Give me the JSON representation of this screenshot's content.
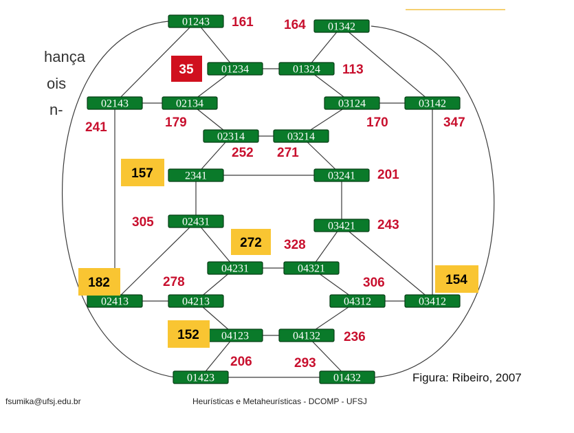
{
  "background_fragments": [
    "hança",
    "ois",
    "n-"
  ],
  "nodes": [
    {
      "id": "01243"
    },
    {
      "id": "01342"
    },
    {
      "id": "01234"
    },
    {
      "id": "01324"
    },
    {
      "id": "02143"
    },
    {
      "id": "02134"
    },
    {
      "id": "03124"
    },
    {
      "id": "03142"
    },
    {
      "id": "02314"
    },
    {
      "id": "03214"
    },
    {
      "id": "2341"
    },
    {
      "id": "03241"
    },
    {
      "id": "02431"
    },
    {
      "id": "03421"
    },
    {
      "id": "04231"
    },
    {
      "id": "04321"
    },
    {
      "id": "02413"
    },
    {
      "id": "04213"
    },
    {
      "id": "04312"
    },
    {
      "id": "03412"
    },
    {
      "id": "04123"
    },
    {
      "id": "04132"
    },
    {
      "id": "01423"
    },
    {
      "id": "01432"
    }
  ],
  "edges": [
    [
      "01243",
      "01234"
    ],
    [
      "01243",
      "02143"
    ],
    [
      "01342",
      "01324"
    ],
    [
      "01342",
      "03142"
    ],
    [
      "01234",
      "01324"
    ],
    [
      "01234",
      "02134"
    ],
    [
      "01324",
      "03124"
    ],
    [
      "02143",
      "02134"
    ],
    [
      "03124",
      "03142"
    ],
    [
      "02134",
      "02314"
    ],
    [
      "03124",
      "03214"
    ],
    [
      "02314",
      "03214"
    ],
    [
      "02314",
      "2341"
    ],
    [
      "03214",
      "03241"
    ],
    [
      "2341",
      "03241"
    ],
    [
      "2341",
      "02431"
    ],
    [
      "03241",
      "03421"
    ],
    [
      "02431",
      "04231"
    ],
    [
      "02431",
      "02413"
    ],
    [
      "03421",
      "04321"
    ],
    [
      "03421",
      "03412"
    ],
    [
      "04231",
      "04321"
    ],
    [
      "04231",
      "04213"
    ],
    [
      "04321",
      "04312"
    ],
    [
      "02413",
      "04213"
    ],
    [
      "04312",
      "03412"
    ],
    [
      "04213",
      "04123"
    ],
    [
      "04312",
      "04132"
    ],
    [
      "04123",
      "04132"
    ],
    [
      "04123",
      "01423"
    ],
    [
      "04132",
      "01432"
    ],
    [
      "01423",
      "01432"
    ],
    [
      "02143",
      "02413"
    ],
    [
      "03142",
      "03412"
    ]
  ],
  "cost_labels": [
    "161",
    "164",
    "113",
    "241",
    "179",
    "170",
    "347",
    "252",
    "271",
    "201",
    "305",
    "243",
    "328",
    "278",
    "306",
    "236",
    "206",
    "293"
  ],
  "highlighted_costs": [
    "35",
    "157",
    "272",
    "182",
    "154",
    "152"
  ],
  "caption": "Figura: Ribeiro, 2007",
  "footer": {
    "email": "fsumika@ufsj.edu.br",
    "course": "Heurísticas e Metaheurísticas - DCOMP - UFSJ"
  }
}
